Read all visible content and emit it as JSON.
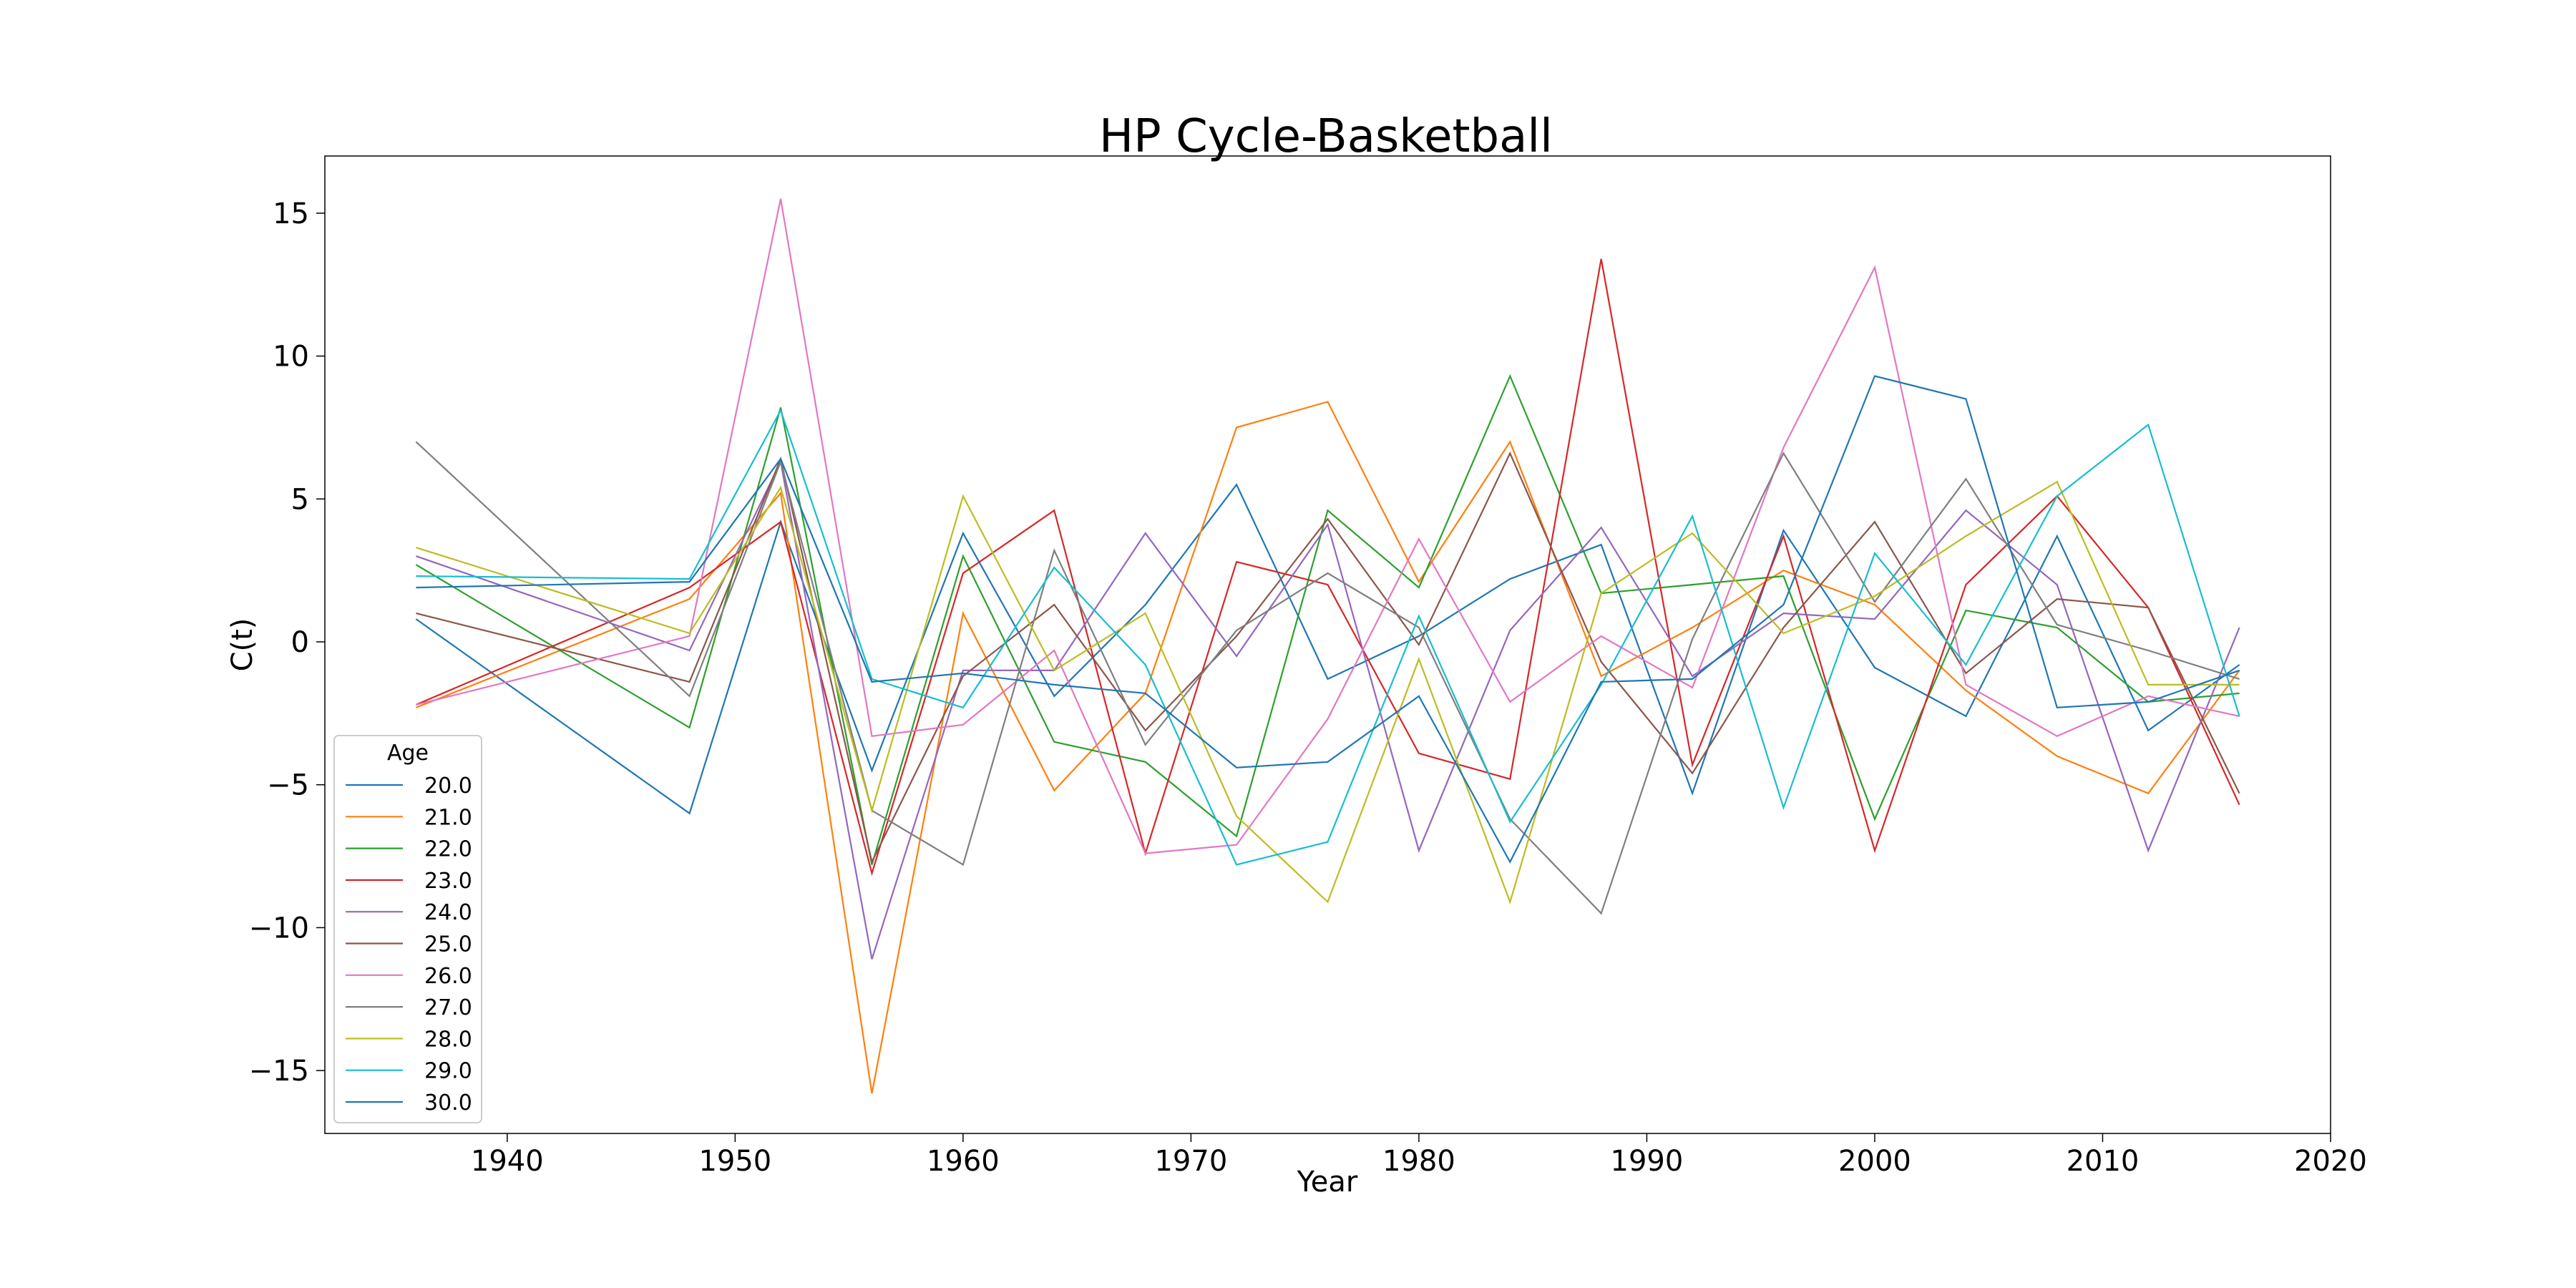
{
  "chart_data": {
    "type": "line",
    "title": "HP Cycle-Basketball",
    "xlabel": "Year",
    "ylabel": "C(t)",
    "xlim": [
      1932,
      2020
    ],
    "ylim": [
      -17.2,
      17
    ],
    "xticks": [
      1940,
      1950,
      1960,
      1970,
      1980,
      1990,
      2000,
      2010,
      2020
    ],
    "yticks": [
      -15,
      -10,
      -5,
      0,
      5,
      10,
      15
    ],
    "ytick_labels": [
      "−15",
      "−10",
      "−5",
      "0",
      "5",
      "10",
      "15"
    ],
    "grid": false,
    "legend_title": "Age",
    "legend_position": "lower-left",
    "x": [
      1936,
      1948,
      1952,
      1956,
      1960,
      1964,
      1968,
      1972,
      1976,
      1980,
      1984,
      1988,
      1992,
      1996,
      2000,
      2004,
      2008,
      2012,
      2016
    ],
    "series": [
      {
        "name": "20.0",
        "color": "#1f77b4",
        "values": [
          0.8,
          -6.0,
          4.2,
          -4.5,
          3.8,
          -1.9,
          1.3,
          5.5,
          -1.3,
          0.2,
          2.2,
          3.4,
          -5.3,
          3.9,
          -0.9,
          -2.6,
          3.7,
          -3.1,
          -0.8
        ]
      },
      {
        "name": "21.0",
        "color": "#ff7f0e",
        "values": [
          -2.3,
          1.5,
          5.2,
          -15.8,
          1.0,
          -5.2,
          -1.8,
          7.5,
          8.4,
          2.1,
          7.0,
          -1.2,
          0.5,
          2.5,
          1.3,
          -1.7,
          -4.0,
          -5.3,
          -1.0
        ]
      },
      {
        "name": "22.0",
        "color": "#2ca02c",
        "values": [
          2.7,
          -3.0,
          8.2,
          -7.8,
          3.0,
          -3.5,
          -4.2,
          -6.8,
          4.6,
          1.9,
          9.3,
          1.7,
          2.0,
          2.3,
          -6.2,
          1.1,
          0.5,
          -2.1,
          -1.8
        ]
      },
      {
        "name": "23.0",
        "color": "#d62728",
        "values": [
          -2.2,
          1.9,
          4.2,
          -8.1,
          2.4,
          4.6,
          -7.4,
          2.8,
          2.0,
          -3.9,
          -4.8,
          13.4,
          -4.3,
          3.7,
          -7.3,
          2.0,
          5.1,
          1.2,
          -5.7
        ]
      },
      {
        "name": "24.0",
        "color": "#9467bd",
        "values": [
          3.0,
          -0.3,
          6.3,
          -11.1,
          -1.0,
          -1.0,
          3.8,
          -0.5,
          4.1,
          -7.3,
          0.4,
          4.0,
          -1.2,
          1.0,
          0.8,
          4.6,
          2.0,
          -7.3,
          0.5
        ]
      },
      {
        "name": "25.0",
        "color": "#8c564b",
        "values": [
          1.0,
          -1.4,
          6.4,
          -7.7,
          -1.2,
          1.3,
          -3.1,
          0.2,
          4.3,
          -0.1,
          6.6,
          -0.7,
          -4.6,
          0.5,
          4.2,
          -1.1,
          1.5,
          1.2,
          -5.3
        ]
      },
      {
        "name": "26.0",
        "color": "#e377c2",
        "values": [
          -2.2,
          0.2,
          15.5,
          -3.3,
          -2.9,
          -0.3,
          -7.4,
          -7.1,
          -2.7,
          3.6,
          -2.1,
          0.2,
          -1.6,
          6.8,
          13.1,
          -1.5,
          -3.3,
          -1.9,
          -2.6
        ]
      },
      {
        "name": "27.0",
        "color": "#7f7f7f",
        "values": [
          7.0,
          -1.9,
          6.3,
          -5.9,
          -7.8,
          3.2,
          -3.6,
          0.4,
          2.4,
          0.5,
          -6.2,
          -9.5,
          0.1,
          6.6,
          1.4,
          5.7,
          0.6,
          -0.3,
          -1.3
        ]
      },
      {
        "name": "28.0",
        "color": "#bcbd22",
        "values": [
          3.3,
          0.3,
          5.4,
          -5.9,
          5.1,
          -1.0,
          1.0,
          -6.1,
          -9.1,
          -0.6,
          -9.1,
          1.7,
          3.8,
          0.3,
          1.6,
          3.7,
          5.6,
          -1.5,
          -1.5
        ]
      },
      {
        "name": "29.0",
        "color": "#17becf",
        "values": [
          2.3,
          2.2,
          8.1,
          -1.3,
          -2.3,
          2.6,
          -0.8,
          -7.8,
          -7.0,
          0.9,
          -6.3,
          -1.5,
          4.4,
          -5.8,
          3.1,
          -0.8,
          5.1,
          7.6,
          -2.6
        ]
      },
      {
        "name": "30.0",
        "color": "#1f77b4",
        "values": [
          1.9,
          2.1,
          6.4,
          -1.4,
          -1.1,
          -1.5,
          -1.8,
          -4.4,
          -4.2,
          -1.9,
          -7.7,
          -1.4,
          -1.3,
          1.3,
          9.3,
          8.5,
          -2.3,
          -2.1,
          -1.0
        ]
      }
    ]
  }
}
